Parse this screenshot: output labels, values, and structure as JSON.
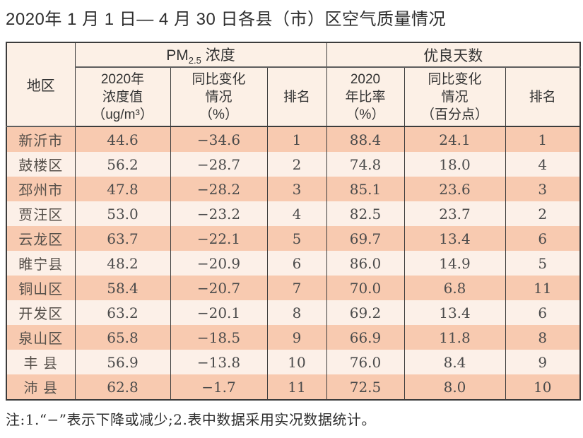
{
  "chart_data": {
    "type": "table",
    "title": "2020年 1 月 1 日— 4 月 30 日各县（市）区空气质量情况",
    "column_groups": [
      "PM2.5浓度",
      "优良天数"
    ],
    "columns": [
      "地区",
      "2020年浓度值（ug/m³）",
      "同比变化情况（%）",
      "排名",
      "2020年比率（%）",
      "同比变化情况（百分点）",
      "排名"
    ],
    "header": {
      "region": "地区",
      "pm_group_prefix": "PM",
      "pm_group_sub": "2.5",
      "pm_group_suffix": " 浓度",
      "good_group": "优良天数",
      "pm_value": "2020年\n浓度值\n（ug/m³）",
      "pm_change": "同比变化\n情况\n（%）",
      "pm_rank": "排名",
      "good_ratio": "2020\n年比率\n（%）",
      "good_change": "同比变化\n情况\n（百分点）",
      "good_rank": "排名"
    },
    "rows": [
      [
        "新沂市",
        44.6,
        -34.6,
        1,
        88.4,
        24.1,
        1
      ],
      [
        "鼓楼区",
        56.2,
        -28.7,
        2,
        74.8,
        18.0,
        4
      ],
      [
        "邳州市",
        47.8,
        -28.2,
        3,
        85.1,
        23.6,
        3
      ],
      [
        "贾汪区",
        53.0,
        -23.2,
        4,
        82.5,
        23.7,
        2
      ],
      [
        "云龙区",
        63.7,
        -22.1,
        5,
        69.7,
        13.4,
        6
      ],
      [
        "睢宁县",
        48.2,
        -20.9,
        6,
        86.0,
        14.9,
        5
      ],
      [
        "铜山区",
        58.4,
        -20.7,
        7,
        70.0,
        6.8,
        11
      ],
      [
        "开发区",
        63.2,
        -20.1,
        8,
        69.2,
        13.4,
        6
      ],
      [
        "泉山区",
        65.8,
        -18.5,
        9,
        66.9,
        11.8,
        8
      ],
      [
        "丰 县",
        56.9,
        -13.8,
        10,
        76.0,
        8.4,
        9
      ],
      [
        "沛 县",
        62.8,
        -1.7,
        11,
        72.5,
        8.0,
        10
      ]
    ],
    "note": "注:1.“−”表示下降或减少;2.表中数据采用实况数据统计。",
    "colors": {
      "row_salmon": "#f8cab0",
      "row_light": "#fcf0e8",
      "header_bg": "#fcf0e6",
      "border": "#3c3c3c"
    }
  }
}
